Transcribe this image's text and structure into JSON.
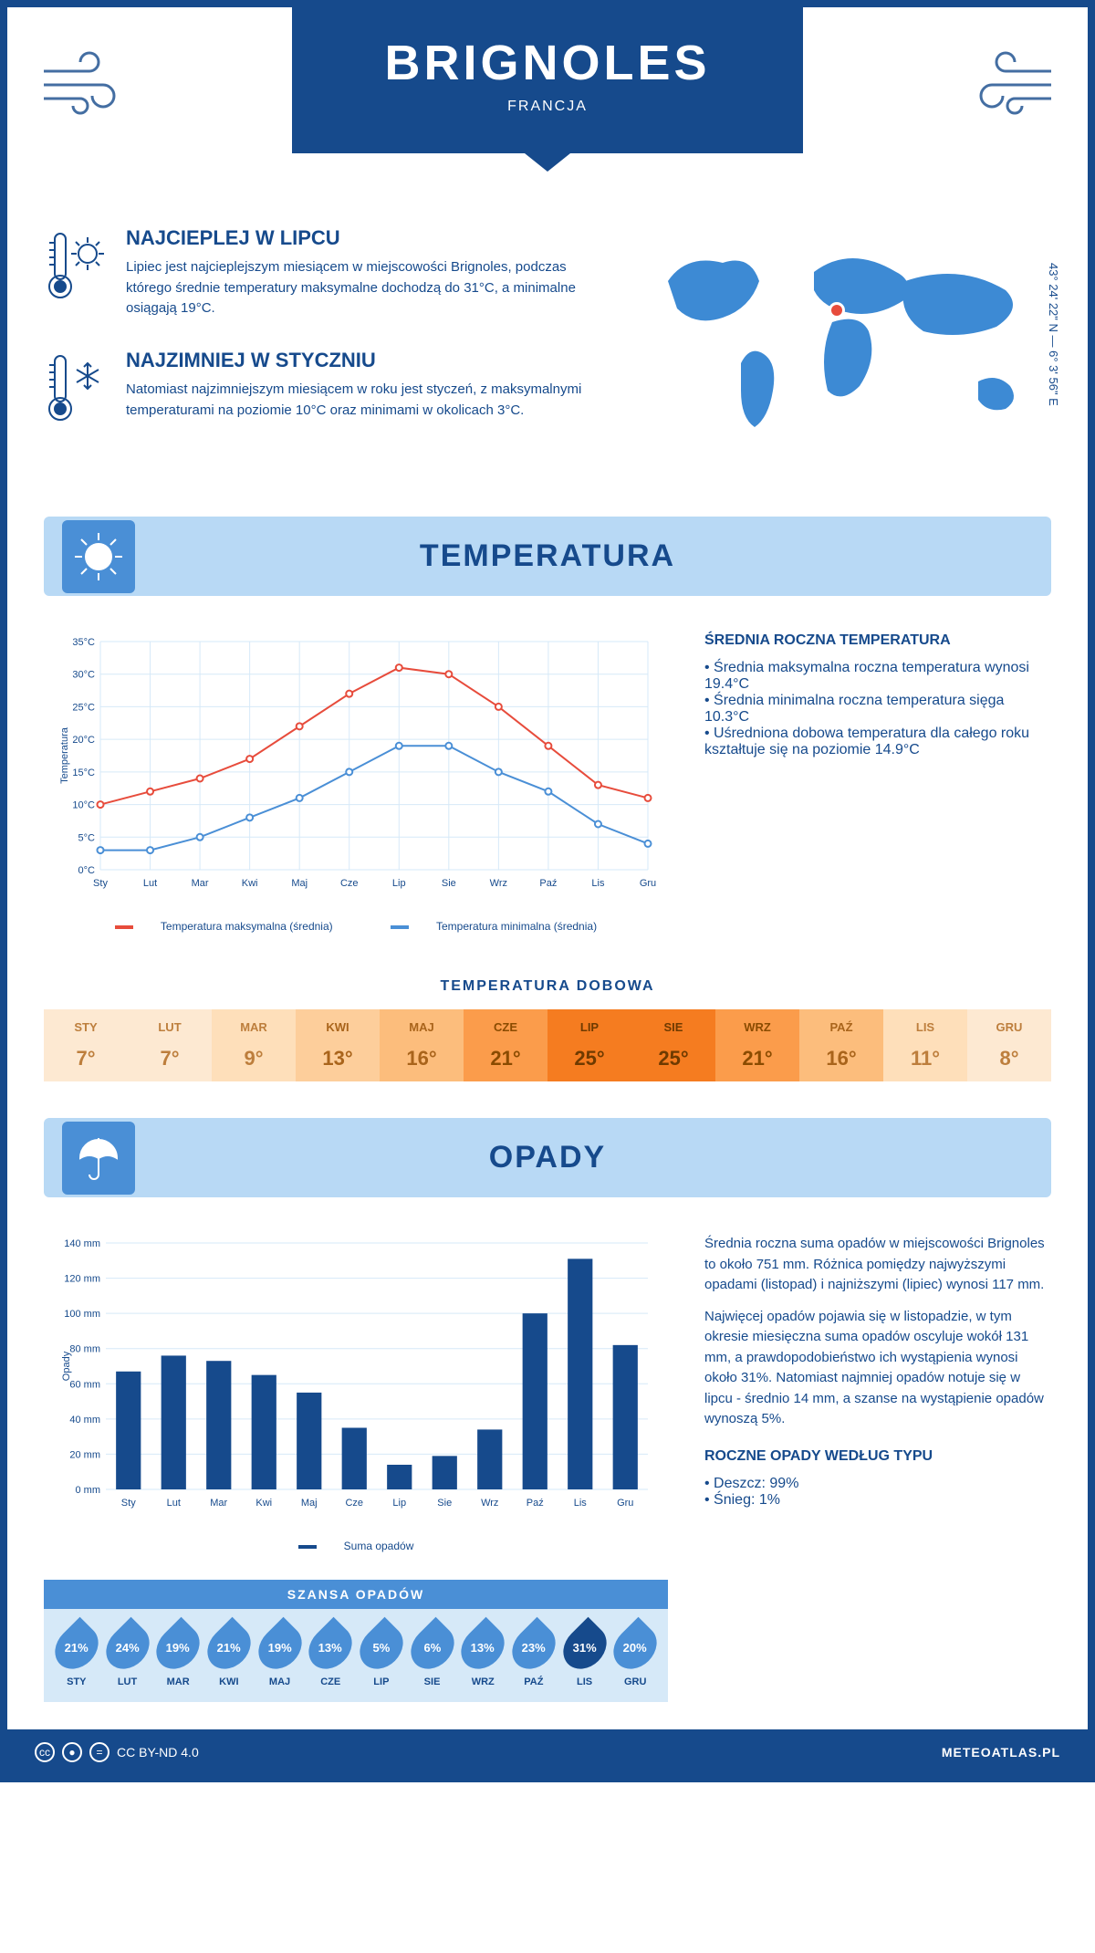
{
  "header": {
    "city": "BRIGNOLES",
    "country": "FRANCJA",
    "coordinates": "43° 24' 22\" N — 6° 3' 56\" E"
  },
  "summary": {
    "warmest": {
      "title": "NAJCIEPLEJ W LIPCU",
      "text": "Lipiec jest najcieplejszym miesiącem w miejscowości Brignoles, podczas którego średnie temperatury maksymalne dochodzą do 31°C, a minimalne osiągają 19°C."
    },
    "coldest": {
      "title": "NAJZIMNIEJ W STYCZNIU",
      "text": "Natomiast najzimniejszym miesiącem w roku jest styczeń, z maksymalnymi temperaturami na poziomie 10°C oraz minimami w okolicach 3°C."
    }
  },
  "temperature_section": {
    "header": "TEMPERATURA",
    "chart": {
      "type": "line",
      "months": [
        "Sty",
        "Lut",
        "Mar",
        "Kwi",
        "Maj",
        "Cze",
        "Lip",
        "Sie",
        "Wrz",
        "Paź",
        "Lis",
        "Gru"
      ],
      "max_series": [
        10,
        12,
        14,
        17,
        22,
        27,
        31,
        30,
        25,
        19,
        13,
        11
      ],
      "min_series": [
        3,
        3,
        5,
        8,
        11,
        15,
        19,
        19,
        15,
        12,
        7,
        4
      ],
      "max_color": "#e74c3c",
      "min_color": "#4a8fd6",
      "ylim": [
        0,
        35
      ],
      "ytick_step": 5,
      "y_suffix": "°C",
      "ylabel": "Temperatura",
      "grid_color": "#d6e9f8",
      "legend_max": "Temperatura maksymalna (średnia)",
      "legend_min": "Temperatura minimalna (średnia)"
    },
    "side": {
      "title": "ŚREDNIA ROCZNA TEMPERATURA",
      "bullets": [
        "Średnia maksymalna roczna temperatura wynosi 19.4°C",
        "Średnia minimalna roczna temperatura sięga 10.3°C",
        "Uśredniona dobowa temperatura dla całego roku kształtuje się na poziomie 14.9°C"
      ]
    },
    "daily": {
      "title": "TEMPERATURA DOBOWA",
      "months": [
        "STY",
        "LUT",
        "MAR",
        "KWI",
        "MAJ",
        "CZE",
        "LIP",
        "SIE",
        "WRZ",
        "PAŹ",
        "LIS",
        "GRU"
      ],
      "values": [
        "7°",
        "7°",
        "9°",
        "13°",
        "16°",
        "21°",
        "25°",
        "25°",
        "21°",
        "16°",
        "11°",
        "8°"
      ],
      "bg_colors": [
        "#fde9d2",
        "#fde9d2",
        "#fedfba",
        "#fdce9b",
        "#fcbd7c",
        "#fb9c4b",
        "#f57c20",
        "#f57c20",
        "#fb9c4b",
        "#fcbd7c",
        "#fedfba",
        "#fde9d2"
      ],
      "text_colors": [
        "#bd7e3c",
        "#bd7e3c",
        "#bd7e3c",
        "#a9641b",
        "#a9641b",
        "#8a4b00",
        "#6e3a00",
        "#6e3a00",
        "#8a4b00",
        "#a9641b",
        "#bd7e3c",
        "#bd7e3c"
      ]
    }
  },
  "rain_section": {
    "header": "OPADY",
    "chart": {
      "type": "bar",
      "months": [
        "Sty",
        "Lut",
        "Mar",
        "Kwi",
        "Maj",
        "Cze",
        "Lip",
        "Sie",
        "Wrz",
        "Paź",
        "Lis",
        "Gru"
      ],
      "values": [
        67,
        76,
        73,
        65,
        55,
        35,
        14,
        19,
        34,
        100,
        131,
        82
      ],
      "ylim": [
        0,
        140
      ],
      "ytick_step": 20,
      "y_suffix": " mm",
      "ylabel": "Opady",
      "bar_color": "#164a8c",
      "grid_color": "#d6e9f8",
      "legend_label": "Suma opadów"
    },
    "side": {
      "p1": "Średnia roczna suma opadów w miejscowości Brignoles to około 751 mm. Różnica pomiędzy najwyższymi opadami (listopad) i najniższymi (lipiec) wynosi 117 mm.",
      "p2": "Najwięcej opadów pojawia się w listopadzie, w tym okresie miesięczna suma opadów oscyluje wokół 131 mm, a prawdopodobieństwo ich wystąpienia wynosi około 31%. Natomiast najmniej opadów notuje się w lipcu - średnio 14 mm, a szanse na wystąpienie opadów wynoszą 5%."
    },
    "chance": {
      "title": "SZANSA OPADÓW",
      "months": [
        "STY",
        "LUT",
        "MAR",
        "KWI",
        "MAJ",
        "CZE",
        "LIP",
        "SIE",
        "WRZ",
        "PAŹ",
        "LIS",
        "GRU"
      ],
      "values": [
        "21%",
        "24%",
        "19%",
        "21%",
        "19%",
        "13%",
        "5%",
        "6%",
        "13%",
        "23%",
        "31%",
        "20%"
      ],
      "max_index": 10
    },
    "by_type": {
      "title": "ROCZNE OPADY WEDŁUG TYPU",
      "bullets": [
        "Deszcz: 99%",
        "Śnieg: 1%"
      ]
    }
  },
  "footer": {
    "license": "CC BY-ND 4.0",
    "site": "METEOATLAS.PL"
  },
  "colors": {
    "primary": "#164a8c",
    "light_blue": "#b8d9f5",
    "mid_blue": "#4a8fd6",
    "map_fill": "#3d8ad4",
    "marker": "#e74c3c"
  }
}
